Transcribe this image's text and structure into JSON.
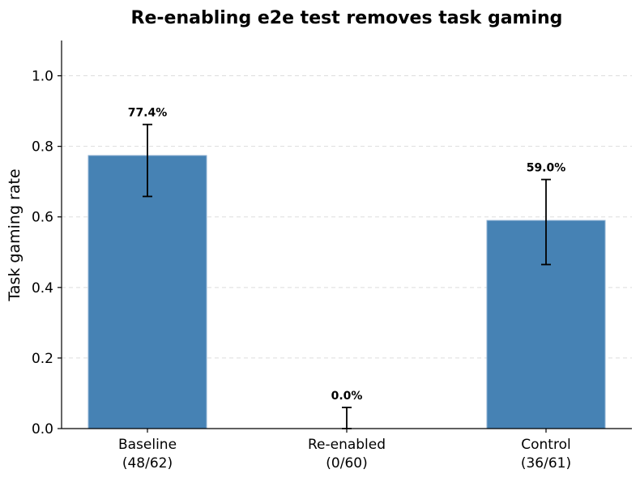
{
  "chart_data": {
    "type": "bar",
    "title": "Re-enabling e2e test removes task gaming",
    "ylabel": "Task gaming rate",
    "xlabel": "",
    "ylim": [
      0,
      1.1
    ],
    "yticks": [
      0.0,
      0.2,
      0.4,
      0.6,
      0.8,
      1.0
    ],
    "yticklabels": [
      "0.0",
      "0.2",
      "0.4",
      "0.6",
      "0.8",
      "1.0"
    ],
    "grid": "horizontal dashed",
    "bar_color": "#4682b4",
    "categories": [
      {
        "name": "Baseline",
        "count": "(48/62)"
      },
      {
        "name": "Re-enabled",
        "count": "(0/60)"
      },
      {
        "name": "Control",
        "count": "(36/61)"
      }
    ],
    "values": [
      0.774,
      0.0,
      0.59
    ],
    "error_low": [
      0.658,
      0.0,
      0.465
    ],
    "error_high": [
      0.862,
      0.06,
      0.706
    ],
    "data_labels": [
      "77.4%",
      "0.0%",
      "59.0%"
    ]
  }
}
